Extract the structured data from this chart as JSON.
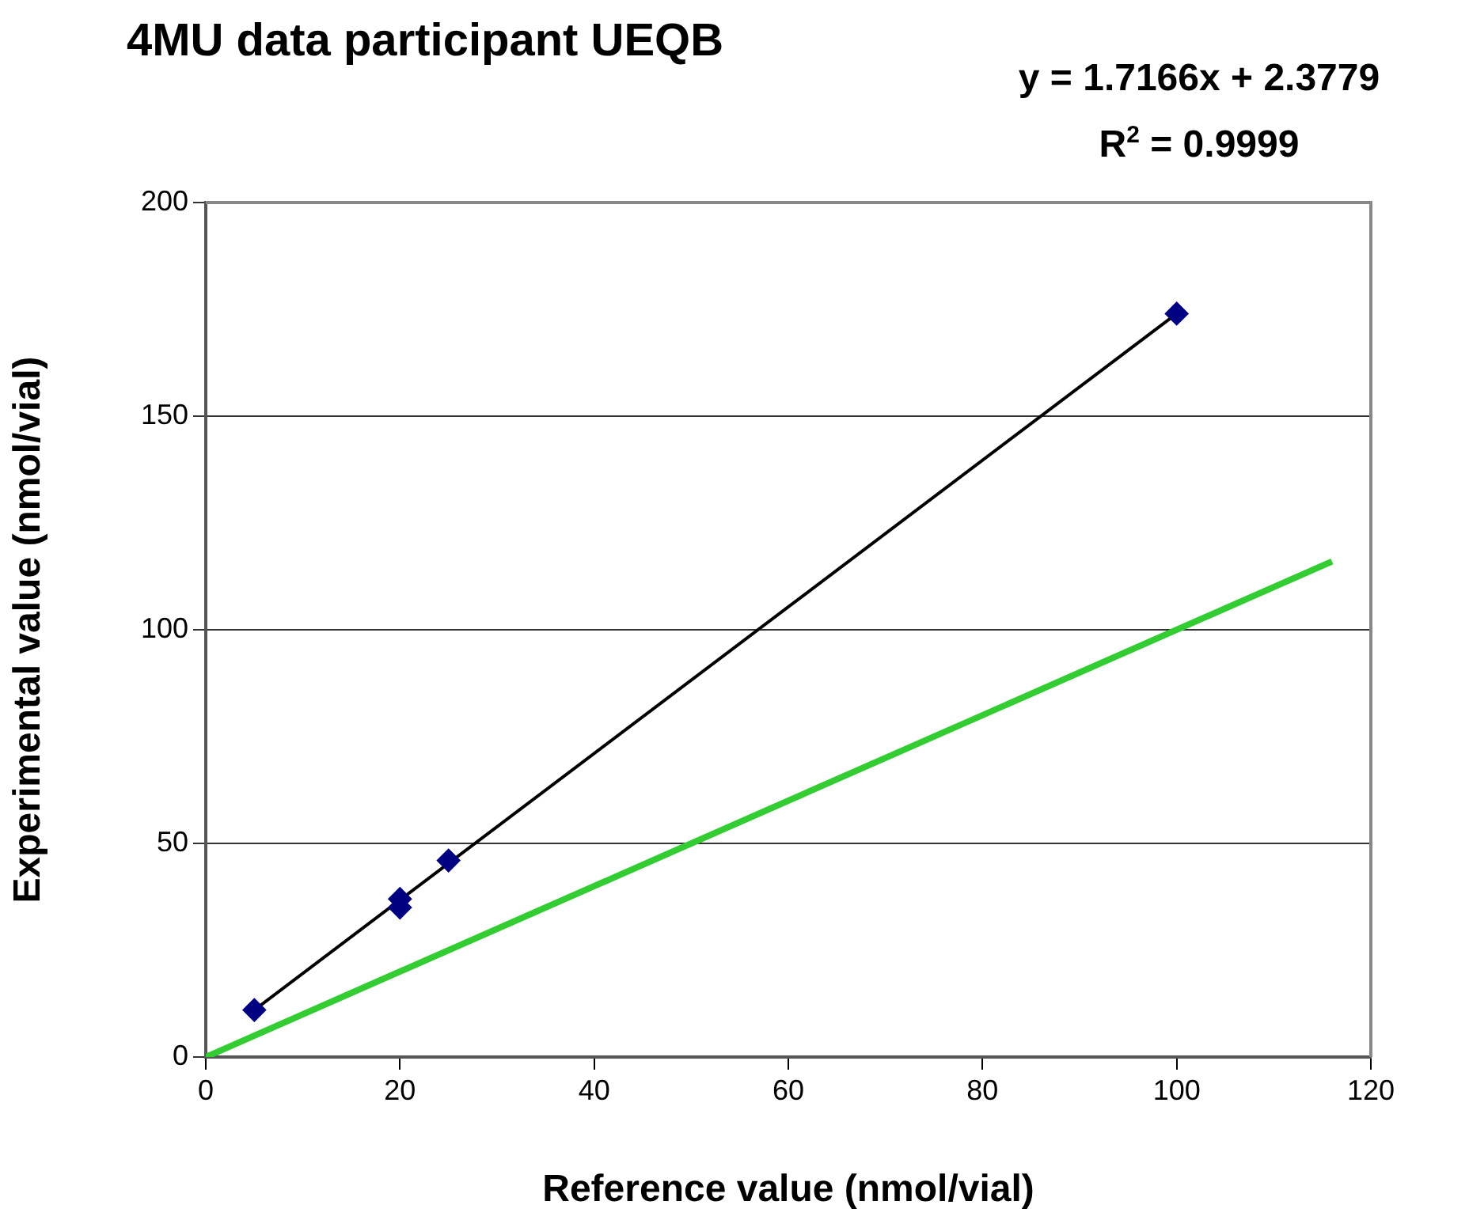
{
  "chart_data": {
    "type": "scatter",
    "title": "4MU data participant UEQB",
    "xlabel": "Reference value (nmol/vial)",
    "ylabel": "Experimental value (nmol/vial)",
    "annotations": [
      "y = 1.7166x + 2.3779",
      "R$^{2}$ = 0.9999"
    ],
    "xlim": [
      0,
      120
    ],
    "xticks": [
      0,
      20,
      40,
      60,
      80,
      100,
      120
    ],
    "ylim": [
      0,
      200
    ],
    "yticks": [
      0,
      50,
      100,
      150,
      200
    ],
    "grid": "y",
    "legend": false,
    "series": [
      {
        "type": "line",
        "color": "#000000",
        "x": [
          5,
          100
        ],
        "values": [
          11,
          174
        ],
        "marker": "none"
      },
      {
        "type": "line",
        "color": "#33cc33",
        "x": [
          0,
          116
        ],
        "values": [
          0,
          116
        ],
        "marker": "none"
      },
      {
        "type": "scatter",
        "color": "#000080",
        "x": [
          5,
          20,
          20,
          25,
          100
        ],
        "values": [
          11,
          37,
          35,
          46,
          174
        ],
        "marker": "diamond"
      }
    ]
  }
}
